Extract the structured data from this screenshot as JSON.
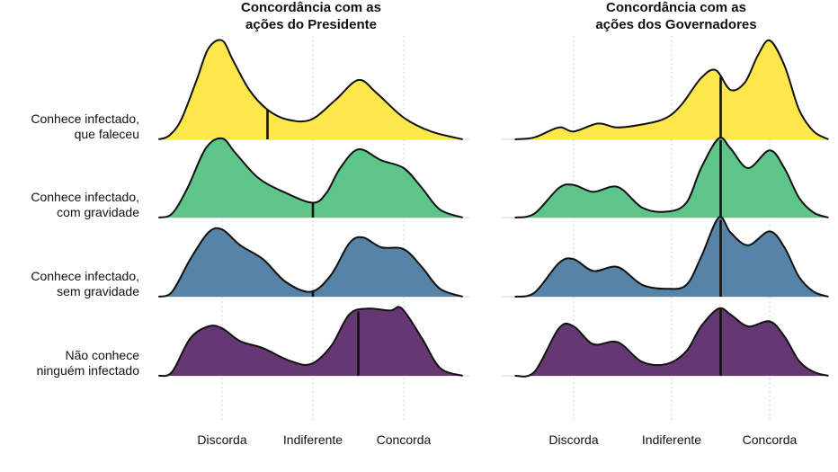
{
  "chart_data": {
    "type": "ridgeline",
    "grid": true,
    "panels": [
      {
        "title": "Concordância com as ações do Presidente",
        "x_ticks": [
          {
            "label": "Discorda",
            "value": 1
          },
          {
            "label": "Indiferente",
            "value": 2
          },
          {
            "label": "Concorda",
            "value": 3
          }
        ],
        "xlim": [
          0,
          3.65
        ],
        "series": [
          {
            "name": "Conhece infectado, que faleceu",
            "color": "#FDE74C",
            "median": 1.5,
            "density": [
              [
                0.3,
                0
              ],
              [
                0.42,
                0.04
              ],
              [
                0.55,
                0.2
              ],
              [
                0.72,
                0.6
              ],
              [
                0.85,
                0.92
              ],
              [
                1.0,
                1.0
              ],
              [
                1.12,
                0.8
              ],
              [
                1.3,
                0.5
              ],
              [
                1.5,
                0.3
              ],
              [
                1.72,
                0.2
              ],
              [
                1.98,
                0.2
              ],
              [
                2.25,
                0.4
              ],
              [
                2.5,
                0.6
              ],
              [
                2.7,
                0.47
              ],
              [
                3.0,
                0.22
              ],
              [
                3.3,
                0.08
              ],
              [
                3.65,
                0
              ]
            ]
          },
          {
            "name": "Conhece infectado, com gravidade",
            "color": "#5DC48A",
            "median": 2.0,
            "density": [
              [
                0.3,
                0
              ],
              [
                0.45,
                0.04
              ],
              [
                0.62,
                0.3
              ],
              [
                0.82,
                0.7
              ],
              [
                1.0,
                0.8
              ],
              [
                1.15,
                0.65
              ],
              [
                1.4,
                0.4
              ],
              [
                1.7,
                0.25
              ],
              [
                2.0,
                0.15
              ],
              [
                2.15,
                0.25
              ],
              [
                2.3,
                0.5
              ],
              [
                2.5,
                0.69
              ],
              [
                2.75,
                0.58
              ],
              [
                3.0,
                0.5
              ],
              [
                3.2,
                0.3
              ],
              [
                3.4,
                0.08
              ],
              [
                3.65,
                0
              ]
            ]
          },
          {
            "name": "Conhece infectado, sem gravidade",
            "color": "#5783A6",
            "median": 2.0,
            "density": [
              [
                0.3,
                0
              ],
              [
                0.45,
                0.05
              ],
              [
                0.65,
                0.38
              ],
              [
                0.85,
                0.65
              ],
              [
                1.0,
                0.68
              ],
              [
                1.2,
                0.52
              ],
              [
                1.45,
                0.38
              ],
              [
                1.7,
                0.15
              ],
              [
                1.98,
                0.05
              ],
              [
                2.2,
                0.22
              ],
              [
                2.4,
                0.54
              ],
              [
                2.55,
                0.6
              ],
              [
                2.75,
                0.5
              ],
              [
                3.0,
                0.48
              ],
              [
                3.2,
                0.3
              ],
              [
                3.4,
                0.08
              ],
              [
                3.65,
                0
              ]
            ]
          },
          {
            "name": "Não conhece ninguém infectado",
            "color": "#653874",
            "median": 2.5,
            "density": [
              [
                0.3,
                0
              ],
              [
                0.45,
                0.04
              ],
              [
                0.65,
                0.38
              ],
              [
                0.85,
                0.5
              ],
              [
                1.0,
                0.48
              ],
              [
                1.2,
                0.35
              ],
              [
                1.45,
                0.28
              ],
              [
                1.75,
                0.15
              ],
              [
                1.98,
                0.12
              ],
              [
                2.2,
                0.3
              ],
              [
                2.4,
                0.62
              ],
              [
                2.6,
                0.68
              ],
              [
                2.85,
                0.66
              ],
              [
                2.98,
                0.68
              ],
              [
                3.2,
                0.38
              ],
              [
                3.4,
                0.08
              ],
              [
                3.65,
                0
              ]
            ]
          }
        ]
      },
      {
        "title": "Concordância com as ações dos Governadores",
        "x_ticks": [
          {
            "label": "Discorda",
            "value": 1
          },
          {
            "label": "Indiferente",
            "value": 2
          },
          {
            "label": "Concorda",
            "value": 3
          }
        ],
        "xlim": [
          0.4,
          3.6
        ],
        "series": [
          {
            "name": "Conhece infectado, que faleceu",
            "color": "#FDE74C",
            "median": 2.5,
            "density": [
              [
                0.4,
                0
              ],
              [
                0.6,
                0.02
              ],
              [
                0.85,
                0.12
              ],
              [
                1.0,
                0.08
              ],
              [
                1.25,
                0.16
              ],
              [
                1.45,
                0.12
              ],
              [
                1.75,
                0.16
              ],
              [
                1.95,
                0.22
              ],
              [
                2.1,
                0.35
              ],
              [
                2.3,
                0.62
              ],
              [
                2.45,
                0.7
              ],
              [
                2.6,
                0.5
              ],
              [
                2.75,
                0.58
              ],
              [
                2.88,
                0.85
              ],
              [
                3.0,
                1.0
              ],
              [
                3.15,
                0.75
              ],
              [
                3.3,
                0.3
              ],
              [
                3.45,
                0.08
              ],
              [
                3.6,
                0
              ]
            ]
          },
          {
            "name": "Conhece infectado, com gravidade",
            "color": "#5DC48A",
            "median": 2.5,
            "density": [
              [
                0.4,
                0
              ],
              [
                0.6,
                0.04
              ],
              [
                0.85,
                0.3
              ],
              [
                1.0,
                0.33
              ],
              [
                1.2,
                0.26
              ],
              [
                1.45,
                0.31
              ],
              [
                1.7,
                0.1
              ],
              [
                1.95,
                0.06
              ],
              [
                2.15,
                0.15
              ],
              [
                2.3,
                0.5
              ],
              [
                2.48,
                0.8
              ],
              [
                2.6,
                0.7
              ],
              [
                2.78,
                0.5
              ],
              [
                3.0,
                0.68
              ],
              [
                3.15,
                0.5
              ],
              [
                3.3,
                0.2
              ],
              [
                3.45,
                0.05
              ],
              [
                3.6,
                0
              ]
            ]
          },
          {
            "name": "Conhece infectado, sem gravidade",
            "color": "#5783A6",
            "median": 2.5,
            "density": [
              [
                0.4,
                0
              ],
              [
                0.6,
                0.04
              ],
              [
                0.85,
                0.34
              ],
              [
                1.0,
                0.38
              ],
              [
                1.2,
                0.26
              ],
              [
                1.45,
                0.3
              ],
              [
                1.7,
                0.12
              ],
              [
                1.95,
                0.08
              ],
              [
                2.15,
                0.12
              ],
              [
                2.3,
                0.4
              ],
              [
                2.48,
                0.8
              ],
              [
                2.6,
                0.65
              ],
              [
                2.78,
                0.52
              ],
              [
                3.0,
                0.66
              ],
              [
                3.15,
                0.5
              ],
              [
                3.3,
                0.2
              ],
              [
                3.45,
                0.05
              ],
              [
                3.6,
                0
              ]
            ]
          },
          {
            "name": "Não conhece ninguém infectado",
            "color": "#653874",
            "median": 2.5,
            "density": [
              [
                0.4,
                0
              ],
              [
                0.6,
                0.04
              ],
              [
                0.85,
                0.48
              ],
              [
                1.0,
                0.5
              ],
              [
                1.2,
                0.32
              ],
              [
                1.45,
                0.34
              ],
              [
                1.7,
                0.14
              ],
              [
                1.95,
                0.12
              ],
              [
                2.15,
                0.25
              ],
              [
                2.3,
                0.5
              ],
              [
                2.48,
                0.68
              ],
              [
                2.6,
                0.62
              ],
              [
                2.78,
                0.5
              ],
              [
                3.0,
                0.55
              ],
              [
                3.15,
                0.4
              ],
              [
                3.3,
                0.15
              ],
              [
                3.45,
                0.04
              ],
              [
                3.6,
                0
              ]
            ]
          }
        ]
      }
    ],
    "row_labels": [
      [
        "Conhece infectado,",
        "que faleceu"
      ],
      [
        "Conhece infectado,",
        "com gravidade"
      ],
      [
        "Conhece infectado,",
        "sem gravidade"
      ],
      [
        "Não conhece",
        "ninguém infectado"
      ]
    ]
  }
}
